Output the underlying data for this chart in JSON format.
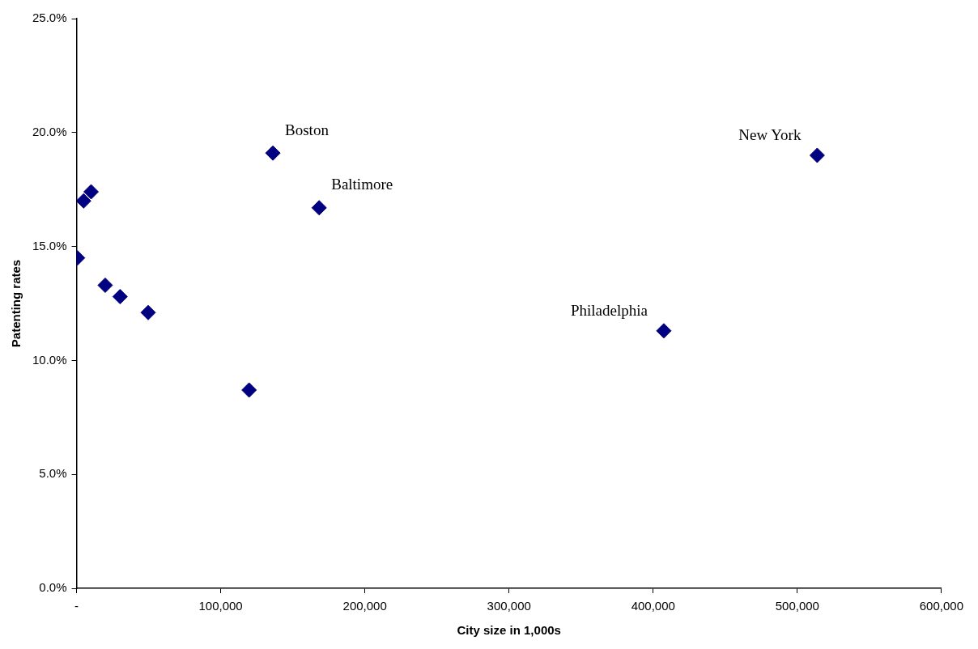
{
  "chart_data": {
    "type": "scatter",
    "xlabel": "City size in 1,000s",
    "ylabel": "Patenting rates",
    "marker": "diamond",
    "grid": false,
    "legend": false,
    "series": [
      {
        "color": "#000080",
        "x": [
          700,
          4900,
          10100,
          19900,
          30200,
          49700,
          119700,
          136200,
          168300,
          407400,
          513800
        ],
        "values": [
          14.5,
          17.0,
          17.4,
          13.3,
          12.8,
          12.1,
          8.7,
          19.1,
          16.7,
          11.3,
          19.0
        ]
      }
    ],
    "xlim": [
      0,
      600000
    ],
    "xticks": [
      {
        "value": 0,
        "label": "-"
      },
      {
        "value": 100000,
        "label": "100,000"
      },
      {
        "value": 200000,
        "label": "200,000"
      },
      {
        "value": 300000,
        "label": "300,000"
      },
      {
        "value": 400000,
        "label": "400,000"
      },
      {
        "value": 500000,
        "label": "500,000"
      },
      {
        "value": 600000,
        "label": "600,000"
      }
    ],
    "ylim": [
      0,
      25
    ],
    "yticks": [
      {
        "value": 0,
        "label": "0.0%"
      },
      {
        "value": 5,
        "label": "5.0%"
      },
      {
        "value": 10,
        "label": "10.0%"
      },
      {
        "value": 15,
        "label": "15.0%"
      },
      {
        "value": 20,
        "label": "20.0%"
      },
      {
        "value": 25,
        "label": "25.0%"
      }
    ],
    "annotations": [
      {
        "text": "Boston",
        "x": 136200,
        "y": 19.1
      },
      {
        "text": "Baltimore",
        "x": 168300,
        "y": 16.7
      },
      {
        "text": "Philadelphia",
        "x": 407400,
        "y": 11.3
      },
      {
        "text": "New York",
        "x": 513800,
        "y": 19.0
      }
    ]
  }
}
